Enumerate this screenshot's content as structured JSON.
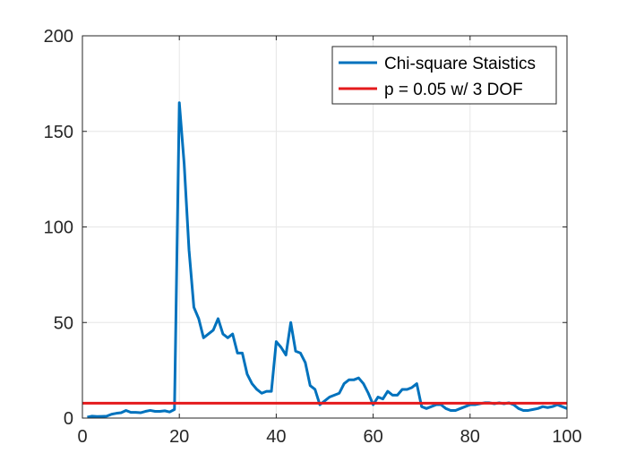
{
  "chart_data": {
    "type": "line",
    "title": "",
    "xlabel": "",
    "ylabel": "",
    "xlim": [
      0,
      100
    ],
    "ylim": [
      0,
      200
    ],
    "grid": true,
    "legend_position": "top-right",
    "x_ticks": [
      0,
      20,
      40,
      60,
      80,
      100
    ],
    "y_ticks": [
      0,
      50,
      100,
      150,
      200
    ],
    "x_tick_labels": [
      "0",
      "20",
      "40",
      "60",
      "80",
      "100"
    ],
    "y_tick_labels": [
      "0",
      "50",
      "100",
      "150",
      "200"
    ],
    "series": [
      {
        "name": "Chi-square Staistics",
        "color": "#0072BD",
        "x": [
          1,
          2,
          3,
          4,
          5,
          6,
          7,
          8,
          9,
          10,
          11,
          12,
          13,
          14,
          15,
          16,
          17,
          18,
          19,
          20,
          21,
          22,
          23,
          24,
          25,
          26,
          27,
          28,
          29,
          30,
          31,
          32,
          33,
          34,
          35,
          36,
          37,
          38,
          39,
          40,
          41,
          42,
          43,
          44,
          45,
          46,
          47,
          48,
          49,
          50,
          51,
          52,
          53,
          54,
          55,
          56,
          57,
          58,
          59,
          60,
          61,
          62,
          63,
          64,
          65,
          66,
          67,
          68,
          69,
          70,
          71,
          72,
          73,
          74,
          75,
          76,
          77,
          78,
          79,
          80,
          81,
          82,
          83,
          84,
          85,
          86,
          87,
          88,
          89,
          90,
          91,
          92,
          93,
          94,
          95,
          96,
          97,
          98,
          99,
          100
        ],
        "values": [
          0.5,
          1,
          0.8,
          0.9,
          1,
          2,
          2.5,
          2.8,
          4,
          3,
          3,
          2.8,
          3.5,
          4,
          3.5,
          3.5,
          3.8,
          3.2,
          4.5,
          165,
          133,
          88,
          58,
          52,
          42,
          44,
          46,
          52,
          44,
          42,
          44,
          34,
          34,
          23,
          18,
          15,
          13,
          14,
          14,
          40,
          37,
          33,
          50,
          35,
          34,
          29,
          17,
          15,
          7,
          9,
          11,
          12,
          13,
          18,
          20,
          20,
          21,
          18,
          13,
          7,
          11,
          10,
          14,
          12,
          12,
          15,
          15,
          16,
          18,
          6,
          5,
          6,
          7,
          7,
          5,
          4,
          4,
          5,
          6,
          7,
          7,
          7.5,
          8,
          8,
          7.5,
          8,
          7.5,
          8,
          7,
          5,
          4,
          4,
          4.5,
          5,
          6,
          5.5,
          6,
          7,
          6,
          5
        ]
      },
      {
        "name": "p = 0.05 w/ 3 DOF",
        "color": "#E41A1C",
        "x": [
          0,
          100
        ],
        "values": [
          7.81,
          7.81
        ]
      }
    ]
  }
}
